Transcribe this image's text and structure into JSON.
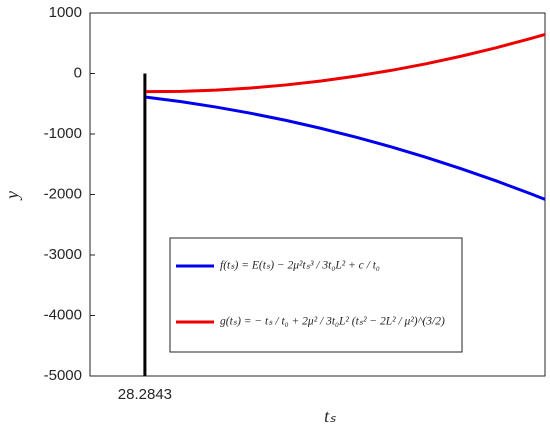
{
  "chart_data": {
    "type": "line",
    "xlabel": "tₛ",
    "ylabel": "y",
    "xlim": [
      27.5,
      34
    ],
    "ylim": [
      -5000,
      1000
    ],
    "xticks": [
      28.2843
    ],
    "yticks": [
      1000,
      0,
      -1000,
      -2000,
      -3000,
      -4000,
      -5000
    ],
    "vline": {
      "x": 28.2843,
      "y": [
        0,
        -5000
      ],
      "color": "#000000"
    },
    "x": [
      28.3,
      28.8,
      29.3,
      29.8,
      30.3,
      30.8,
      31.3,
      31.8,
      32.3,
      32.8,
      33.3,
      33.8,
      34
    ],
    "series": [
      {
        "name": "f(tₛ) = E(tₛ) − 2μ²tₛ³ / 3t₀L² + c / t₀",
        "color": "#0000ee",
        "values": [
          -390,
          -465,
          -555,
          -658,
          -775,
          -907,
          -1052,
          -1212,
          -1385,
          -1573,
          -1774,
          -1990,
          -2080
        ]
      },
      {
        "name": "g(tₛ) = − tₛ / t₀ + 2μ² / 3t₀L² (tₛ² − 2L² / μ²)^(3/2)",
        "color": "#ee0000",
        "values": [
          -300,
          -295,
          -275,
          -239,
          -189,
          -124,
          -44,
          51,
          160,
          285,
          425,
          579,
          645
        ]
      }
    ]
  }
}
